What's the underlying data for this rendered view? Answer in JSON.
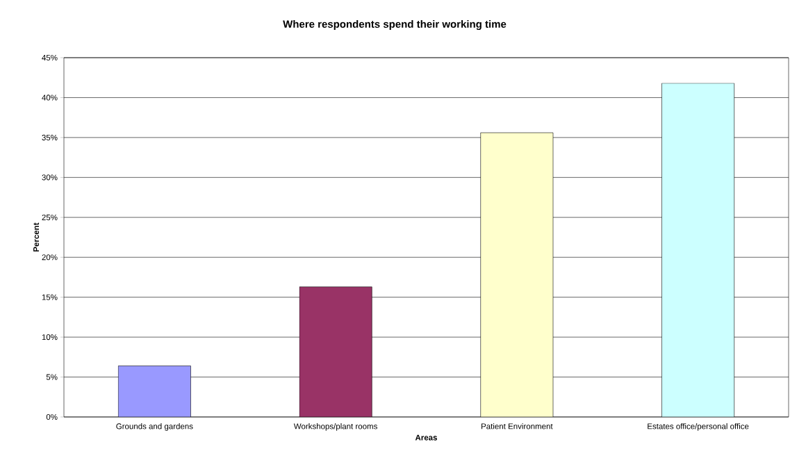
{
  "chart_data": {
    "type": "bar",
    "title": "Where respondents spend their working time",
    "xlabel": "Areas",
    "ylabel": "Percent",
    "categories": [
      "Grounds and gardens",
      "Workshops/plant rooms",
      "Patient Environment",
      "Estates office/personal office"
    ],
    "values": [
      6.4,
      16.3,
      35.6,
      41.8
    ],
    "colors": [
      "#9999ff",
      "#993366",
      "#ffffcc",
      "#ccffff"
    ],
    "ylim": [
      0,
      45
    ],
    "yticks": [
      {
        "value": 0,
        "label": "0%"
      },
      {
        "value": 5,
        "label": "5%"
      },
      {
        "value": 10,
        "label": "10%"
      },
      {
        "value": 15,
        "label": "15%"
      },
      {
        "value": 20,
        "label": "20%"
      },
      {
        "value": 25,
        "label": "25%"
      },
      {
        "value": 30,
        "label": "30%"
      },
      {
        "value": 35,
        "label": "35%"
      },
      {
        "value": 40,
        "label": "40%"
      },
      {
        "value": 45,
        "label": "45%"
      }
    ],
    "grid": "y"
  }
}
